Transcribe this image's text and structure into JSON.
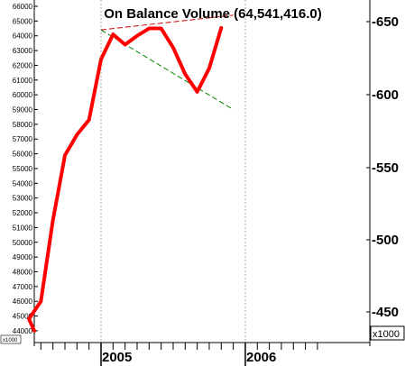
{
  "chart_data": {
    "type": "line",
    "title": "On Balance Volume (64,541,416.0)",
    "x": [
      "2004-06",
      "2004-07",
      "2004-08",
      "2004-09",
      "2004-10",
      "2004-11",
      "2004-12",
      "2005-01",
      "2005-02",
      "2005-03",
      "2005-04",
      "2005-05",
      "2005-06",
      "2005-07",
      "2005-08",
      "2005-09",
      "2005-10",
      "2005-11"
    ],
    "series": [
      {
        "values": [
          44000,
          44800,
          46000,
          51500,
          55900,
          57300,
          58300,
          62400,
          64100,
          63400,
          64000,
          64500,
          64500,
          63200,
          61400,
          60200,
          61800,
          64541
        ]
      }
    ],
    "x_tick_labels": [
      "2005",
      "2006"
    ],
    "left_axis": {
      "ticks": [
        "44000",
        "45000",
        "46000",
        "47000",
        "48000",
        "49000",
        "50000",
        "51000",
        "52000",
        "53000",
        "54000",
        "55000",
        "56000",
        "57000",
        "58000",
        "59000",
        "60000",
        "61000",
        "62000",
        "63000",
        "64000",
        "65000",
        "66000"
      ],
      "ylim": [
        43600,
        66500
      ]
    },
    "right_axis": {
      "ticks": [
        "-450",
        "-500",
        "-550",
        "-600",
        "-650"
      ],
      "multiplier": "x1000"
    },
    "left_multiplier": "x1000",
    "trendlines": [
      {
        "style": "dashed",
        "color": "#cc0000",
        "from": {
          "x": "2005-01",
          "y": 64400
        },
        "to": {
          "x": "2005-12",
          "y": 65400
        }
      },
      {
        "style": "dashed",
        "color": "#008800",
        "from": {
          "x": "2005-01",
          "y": 64400
        },
        "to": {
          "x": "2005-12",
          "y": 59000
        }
      }
    ],
    "line_color": "#ff0000",
    "grid": "vertical dotted at year boundaries"
  }
}
